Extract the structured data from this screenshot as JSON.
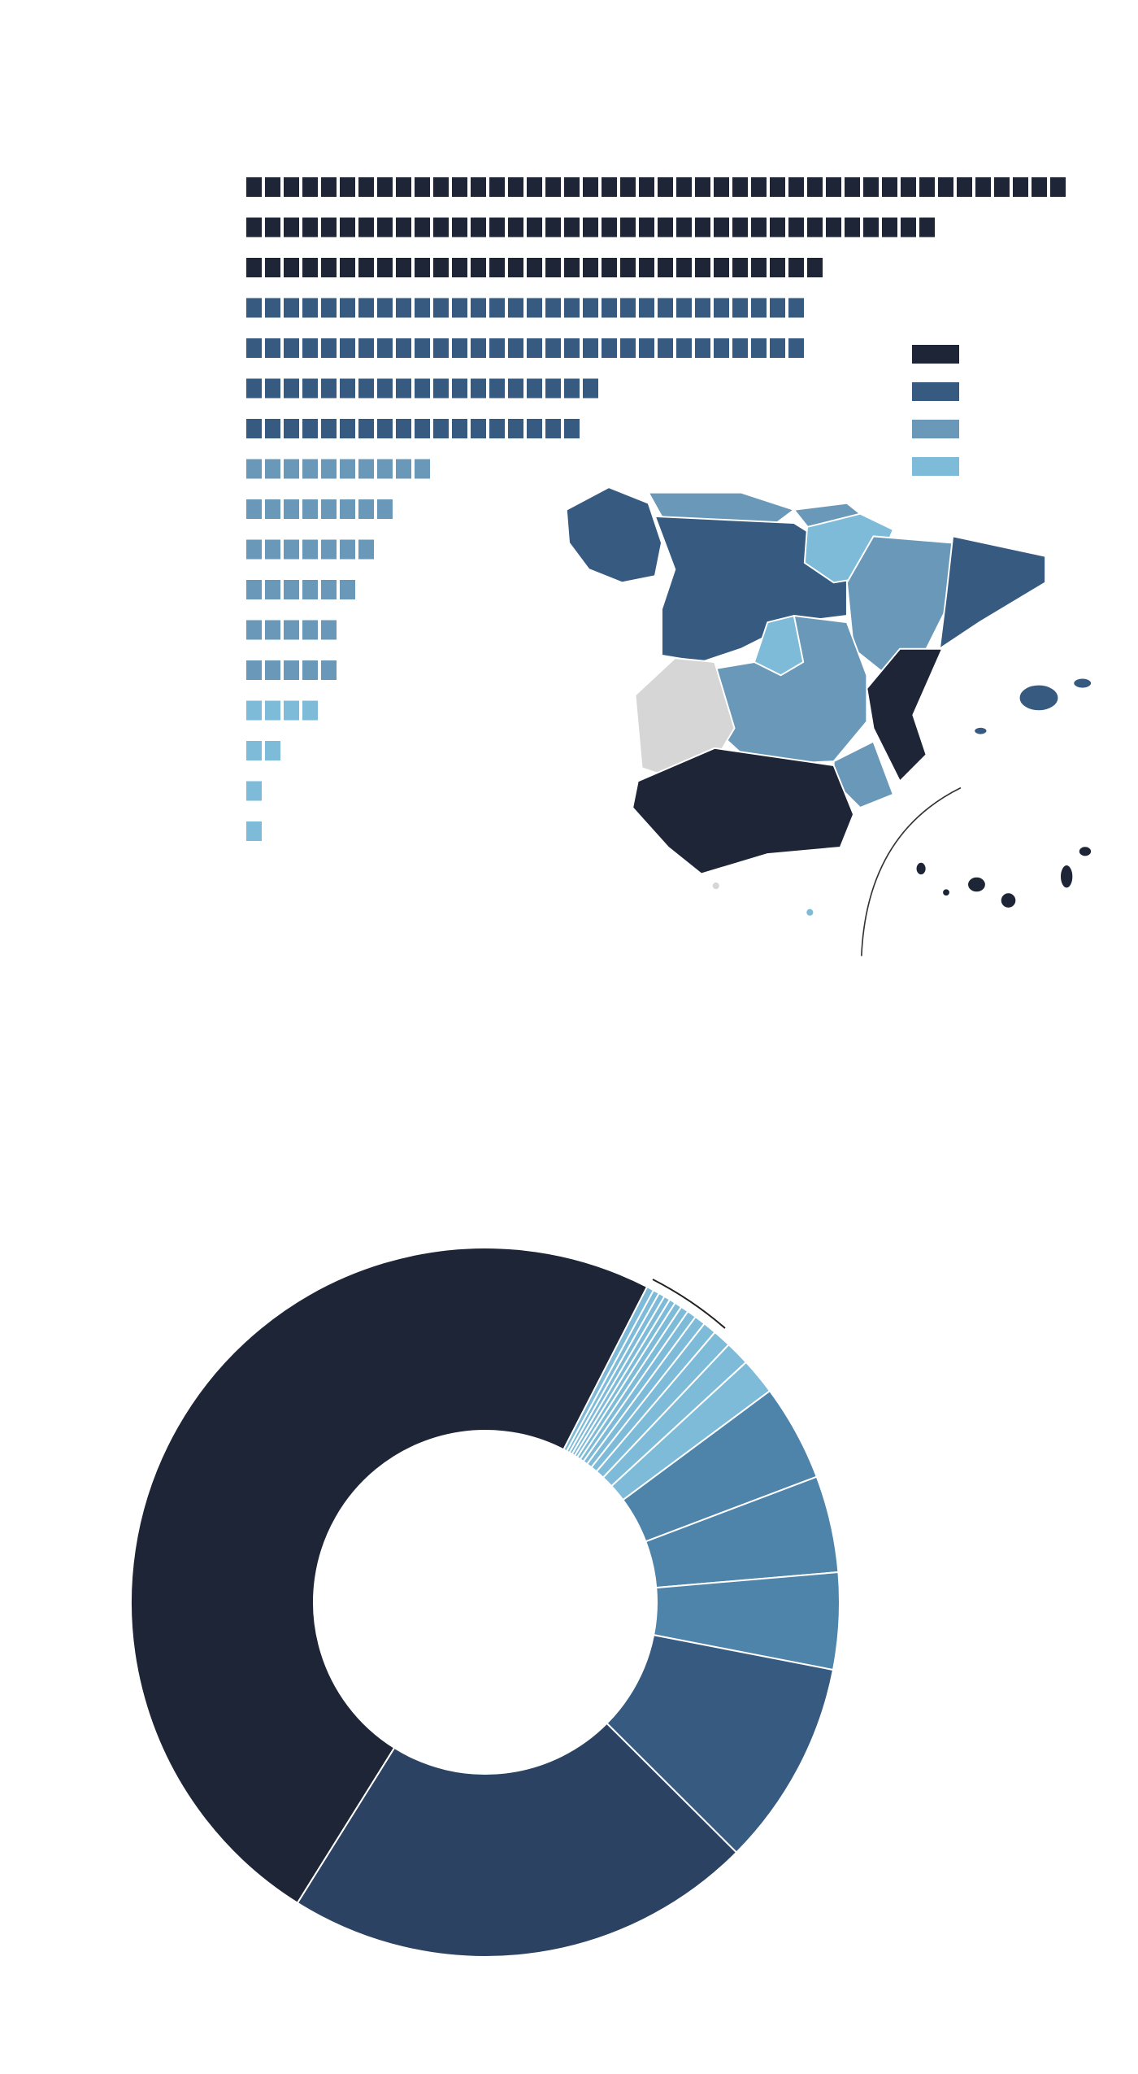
{
  "chart_data": [
    {
      "type": "waffle",
      "values": [
        44,
        37,
        31,
        30,
        30,
        19,
        18,
        10,
        8,
        7,
        6,
        5,
        5,
        4,
        2,
        1,
        1
      ],
      "colors": [
        "#1e2536",
        "#1e2536",
        "#1e2536",
        "#365a80",
        "#365a80",
        "#365a80",
        "#365a80",
        "#6a98b8",
        "#6a98b8",
        "#6a98b8",
        "#6a98b8",
        "#6a98b8",
        "#6a98b8",
        "#7ebbd9",
        "#7ebbd9",
        "#7ebbd9",
        "#7ebbd9"
      ],
      "legend_colors": [
        "#1e2536",
        "#365a80",
        "#6a98b8",
        "#7ebbd9"
      ]
    },
    {
      "type": "donut",
      "values": [
        48.6,
        0.33,
        0.28,
        0.28,
        0.28,
        0.28,
        0.33,
        0.36,
        0.42,
        0.5,
        0.61,
        0.83,
        1.11,
        1.67,
        4.4,
        4.4,
        4.4,
        9.4,
        21.4
      ],
      "colors": [
        "#1e2536",
        "#7ebbd9",
        "#7ebbd9",
        "#7ebbd9",
        "#7ebbd9",
        "#7ebbd9",
        "#7ebbd9",
        "#7ebbd9",
        "#7ebbd9",
        "#7ebbd9",
        "#7ebbd9",
        "#7ebbd9",
        "#7ebbd9",
        "#7ebbd9",
        "#4e83aa",
        "#4e83aa",
        "#4e83aa",
        "#365a80",
        "#2b4262"
      ]
    }
  ]
}
